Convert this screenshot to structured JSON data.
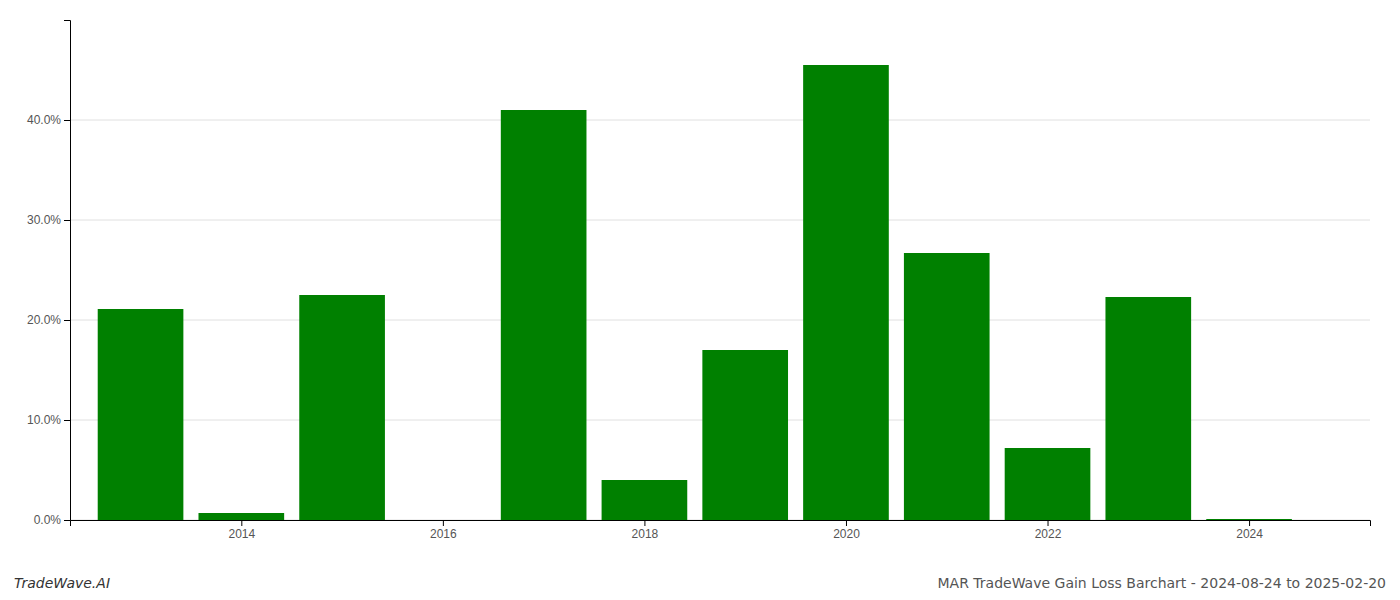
{
  "chart_data": {
    "type": "bar",
    "title": "MAR TradeWave Gain Loss Barchart - 2024-08-24 to 2025-02-20",
    "annotations": [
      "TradeWave.AI"
    ],
    "x": [
      2013,
      2014,
      2015,
      2016,
      2017,
      2018,
      2019,
      2020,
      2021,
      2022,
      2023,
      2024
    ],
    "values": [
      0.211,
      0.007,
      0.225,
      0.0,
      0.41,
      0.04,
      0.17,
      0.455,
      0.267,
      0.072,
      0.223,
      0.001
    ],
    "color": "#008000",
    "xlim": [
      2012.3,
      2025.2
    ],
    "xticks": [
      2014,
      2016,
      2018,
      2020,
      2022,
      2024
    ],
    "ylim": [
      0,
      0.5
    ],
    "yticks": [
      {
        "value": 0.0,
        "label": "0.0%"
      },
      {
        "value": 0.1,
        "label": "10.0%"
      },
      {
        "value": 0.2,
        "label": "20.0%"
      },
      {
        "value": 0.3,
        "label": "30.0%"
      },
      {
        "value": 0.4,
        "label": "40.0%"
      }
    ],
    "grid": true
  }
}
